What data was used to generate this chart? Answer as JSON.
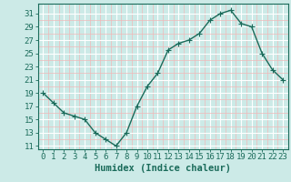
{
  "x": [
    0,
    1,
    2,
    3,
    4,
    5,
    6,
    7,
    8,
    9,
    10,
    11,
    12,
    13,
    14,
    15,
    16,
    17,
    18,
    19,
    20,
    21,
    22,
    23
  ],
  "y": [
    19,
    17.5,
    16,
    15.5,
    15,
    13,
    12,
    11,
    13,
    17,
    20,
    22,
    25.5,
    26.5,
    27,
    28,
    30,
    31,
    31.5,
    29.5,
    29,
    25,
    22.5,
    21
  ],
  "line_color": "#1a6b5a",
  "marker": "+",
  "marker_size": 4,
  "background_color": "#cceae7",
  "grid_major_color": "#ffffff",
  "grid_minor_color": "#f0b8b8",
  "xlabel": "Humidex (Indice chaleur)",
  "ylim": [
    10.5,
    32.5
  ],
  "xlim": [
    -0.5,
    23.5
  ],
  "yticks": [
    11,
    13,
    15,
    17,
    19,
    21,
    23,
    25,
    27,
    29,
    31
  ],
  "xticks": [
    0,
    1,
    2,
    3,
    4,
    5,
    6,
    7,
    8,
    9,
    10,
    11,
    12,
    13,
    14,
    15,
    16,
    17,
    18,
    19,
    20,
    21,
    22,
    23
  ],
  "tick_label_fontsize": 6.5,
  "xlabel_fontsize": 7.5,
  "tick_color": "#1a6b5a",
  "axis_color": "#1a6b5a",
  "linewidth": 1.0,
  "markeredgewidth": 0.8
}
